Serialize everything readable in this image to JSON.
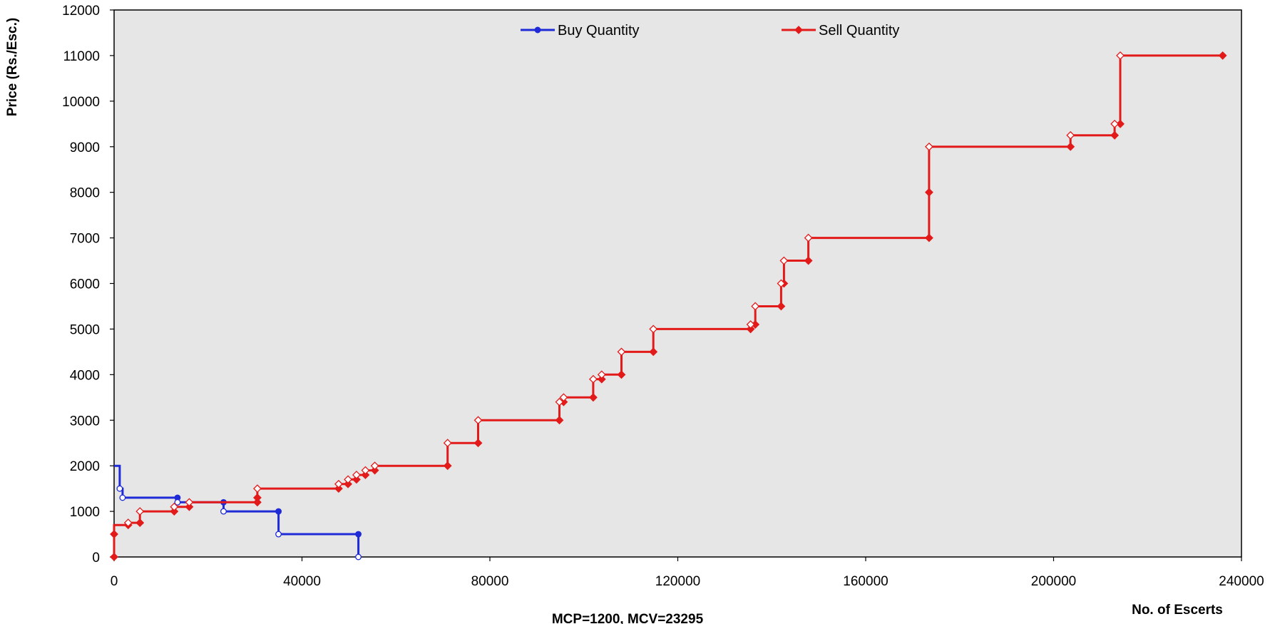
{
  "chart_data": {
    "type": "line",
    "ylabel": "Price (Rs./Esc.)",
    "xlabel": "No. of Escerts",
    "footer": "MCP=1200, MCV=23295",
    "xlim": [
      0,
      240000
    ],
    "ylim": [
      0,
      12000
    ],
    "x_ticks": [
      "0",
      "40000",
      "80000",
      "120000",
      "160000",
      "200000",
      "240000"
    ],
    "y_ticks": [
      "0",
      "1000",
      "2000",
      "3000",
      "4000",
      "5000",
      "6000",
      "7000",
      "8000",
      "9000",
      "10000",
      "11000",
      "12000"
    ],
    "grid": false,
    "legend_position": "top",
    "series": [
      {
        "name": "Buy Quantity",
        "color": "#1f2bd6",
        "marker": "circle",
        "step_points": [
          [
            0,
            2000
          ],
          [
            1200,
            2000
          ],
          [
            1200,
            1500
          ],
          [
            1800,
            1500
          ],
          [
            1800,
            1300
          ],
          [
            13500,
            1300
          ],
          [
            13500,
            1200
          ],
          [
            23300,
            1200
          ],
          [
            23300,
            1000
          ],
          [
            35000,
            1000
          ],
          [
            35000,
            500
          ],
          [
            52000,
            500
          ],
          [
            52000,
            0
          ]
        ],
        "open_markers": [
          [
            1200,
            1500
          ],
          [
            1800,
            1300
          ],
          [
            13500,
            1200
          ],
          [
            23300,
            1000
          ],
          [
            35000,
            500
          ],
          [
            52000,
            0
          ]
        ],
        "filled_markers": [
          [
            13500,
            1300
          ],
          [
            23300,
            1200
          ],
          [
            35000,
            1000
          ],
          [
            52000,
            500
          ]
        ]
      },
      {
        "name": "Sell Quantity",
        "color": "#e21a1a",
        "marker": "diamond",
        "step_points": [
          [
            0,
            0
          ],
          [
            0,
            700
          ],
          [
            3000,
            700
          ],
          [
            3000,
            750
          ],
          [
            5500,
            750
          ],
          [
            5500,
            1000
          ],
          [
            12800,
            1000
          ],
          [
            12800,
            1100
          ],
          [
            16000,
            1100
          ],
          [
            16000,
            1200
          ],
          [
            30500,
            1200
          ],
          [
            30500,
            1500
          ],
          [
            47800,
            1500
          ],
          [
            47800,
            1600
          ],
          [
            49800,
            1600
          ],
          [
            49800,
            1700
          ],
          [
            51600,
            1700
          ],
          [
            51600,
            1800
          ],
          [
            53500,
            1800
          ],
          [
            53500,
            1900
          ],
          [
            55500,
            1900
          ],
          [
            55500,
            2000
          ],
          [
            71000,
            2000
          ],
          [
            71000,
            2500
          ],
          [
            77500,
            2500
          ],
          [
            77500,
            3000
          ],
          [
            94800,
            3000
          ],
          [
            94800,
            3400
          ],
          [
            95700,
            3400
          ],
          [
            95700,
            3500
          ],
          [
            102000,
            3500
          ],
          [
            102000,
            3900
          ],
          [
            103800,
            3900
          ],
          [
            103800,
            4000
          ],
          [
            108000,
            4000
          ],
          [
            108000,
            4500
          ],
          [
            114800,
            4500
          ],
          [
            114800,
            5000
          ],
          [
            135500,
            5000
          ],
          [
            135500,
            5100
          ],
          [
            136500,
            5100
          ],
          [
            136500,
            5500
          ],
          [
            142000,
            5500
          ],
          [
            142000,
            6000
          ],
          [
            142600,
            6000
          ],
          [
            142600,
            6500
          ],
          [
            147800,
            6500
          ],
          [
            147800,
            7000
          ],
          [
            173500,
            7000
          ],
          [
            173500,
            9000
          ],
          [
            203600,
            9000
          ],
          [
            203600,
            9250
          ],
          [
            213000,
            9250
          ],
          [
            213000,
            9500
          ],
          [
            214200,
            9500
          ],
          [
            214200,
            11000
          ],
          [
            236000,
            11000
          ]
        ],
        "open_markers": [
          [
            3000,
            750
          ],
          [
            5500,
            1000
          ],
          [
            12800,
            1100
          ],
          [
            16000,
            1200
          ],
          [
            30500,
            1500
          ],
          [
            47800,
            1600
          ],
          [
            49800,
            1700
          ],
          [
            51600,
            1800
          ],
          [
            53500,
            1900
          ],
          [
            55500,
            2000
          ],
          [
            71000,
            2500
          ],
          [
            77500,
            3000
          ],
          [
            94800,
            3400
          ],
          [
            95700,
            3500
          ],
          [
            102000,
            3900
          ],
          [
            103800,
            4000
          ],
          [
            108000,
            4500
          ],
          [
            114800,
            5000
          ],
          [
            135500,
            5100
          ],
          [
            136500,
            5500
          ],
          [
            142000,
            6000
          ],
          [
            142600,
            6500
          ],
          [
            147800,
            7000
          ],
          [
            173500,
            9000
          ],
          [
            203600,
            9250
          ],
          [
            213000,
            9500
          ],
          [
            214200,
            11000
          ]
        ],
        "filled_markers": [
          [
            0,
            0
          ],
          [
            0,
            500
          ],
          [
            3000,
            700
          ],
          [
            5500,
            750
          ],
          [
            12800,
            1000
          ],
          [
            16000,
            1100
          ],
          [
            30500,
            1200
          ],
          [
            30500,
            1300
          ],
          [
            47800,
            1500
          ],
          [
            49800,
            1600
          ],
          [
            51600,
            1700
          ],
          [
            53500,
            1800
          ],
          [
            55500,
            1900
          ],
          [
            71000,
            2000
          ],
          [
            77500,
            2500
          ],
          [
            94800,
            3000
          ],
          [
            95700,
            3400
          ],
          [
            102000,
            3500
          ],
          [
            103800,
            3900
          ],
          [
            108000,
            4000
          ],
          [
            114800,
            4500
          ],
          [
            135500,
            5000
          ],
          [
            136500,
            5100
          ],
          [
            142000,
            5500
          ],
          [
            142600,
            6000
          ],
          [
            147800,
            6500
          ],
          [
            173500,
            7000
          ],
          [
            173500,
            8000
          ],
          [
            203600,
            9000
          ],
          [
            213000,
            9250
          ],
          [
            214200,
            9500
          ],
          [
            236000,
            11000
          ]
        ]
      }
    ]
  }
}
